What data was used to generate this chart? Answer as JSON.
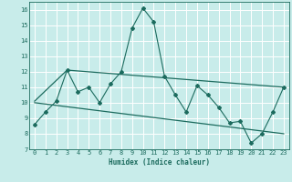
{
  "xlabel": "Humidex (Indice chaleur)",
  "xlim": [
    -0.5,
    23.5
  ],
  "ylim": [
    7,
    16.5
  ],
  "yticks": [
    7,
    8,
    9,
    10,
    11,
    12,
    13,
    14,
    15,
    16
  ],
  "xticks": [
    0,
    1,
    2,
    3,
    4,
    5,
    6,
    7,
    8,
    9,
    10,
    11,
    12,
    13,
    14,
    15,
    16,
    17,
    18,
    19,
    20,
    21,
    22,
    23
  ],
  "bg_color": "#c8ecea",
  "line_color": "#1c6b5e",
  "grid_color": "#ffffff",
  "line1_x": [
    0,
    1,
    2,
    3,
    4,
    5,
    6,
    7,
    8,
    9,
    10,
    11,
    12,
    13,
    14,
    15,
    16,
    17,
    18,
    19,
    20,
    21,
    22,
    23
  ],
  "line1_y": [
    8.6,
    9.4,
    10.1,
    12.1,
    10.7,
    11.0,
    10.0,
    11.2,
    12.0,
    14.8,
    16.1,
    15.2,
    11.7,
    10.5,
    9.4,
    11.1,
    10.5,
    9.7,
    8.7,
    8.8,
    7.4,
    8.0,
    9.4,
    11.0
  ],
  "line2_x": [
    0,
    3,
    23
  ],
  "line2_y": [
    10.1,
    12.1,
    11.0
  ],
  "line3_x": [
    0,
    23
  ],
  "line3_y": [
    10.0,
    8.0
  ]
}
